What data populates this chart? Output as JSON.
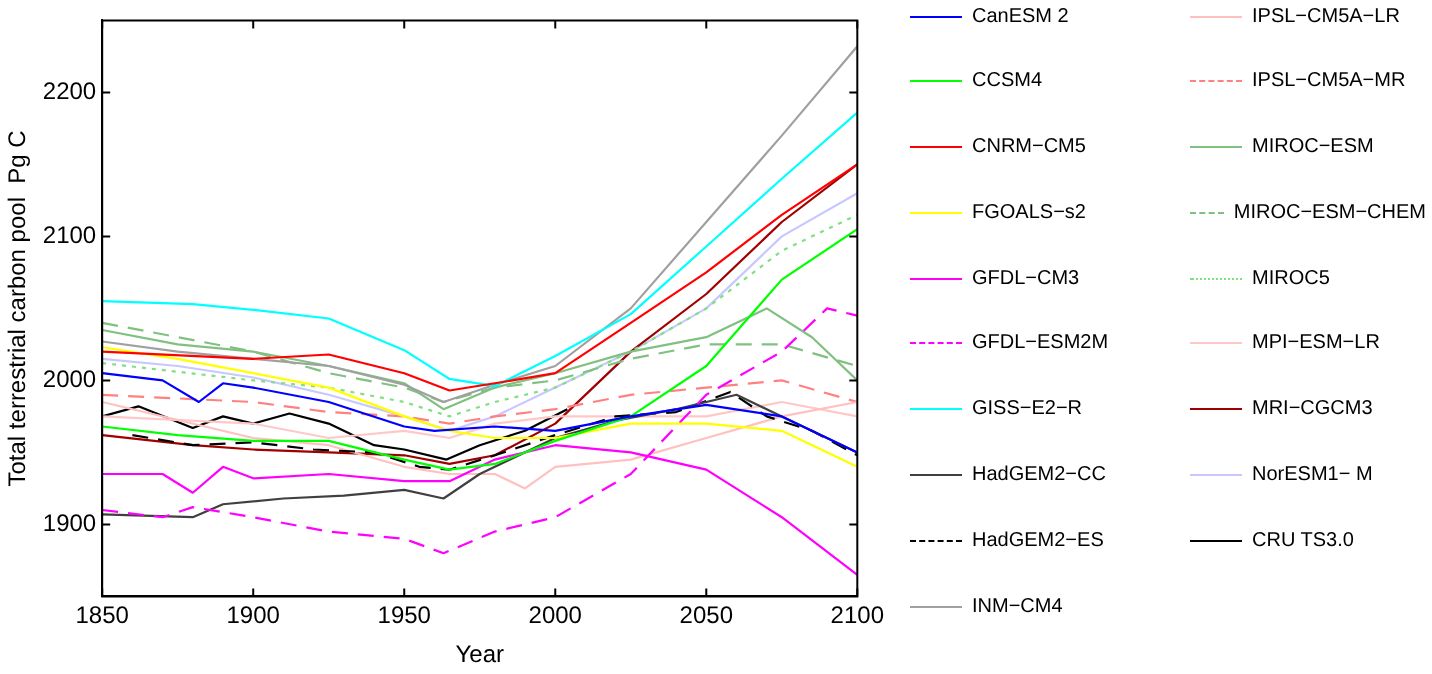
{
  "chart_data": {
    "type": "line",
    "xlabel": "Year",
    "ylabel": "Total terrestrial carbon pool  Pg C",
    "xlim": [
      1850,
      2100
    ],
    "ylim": [
      1850,
      2250
    ],
    "xticks": [
      1850,
      1900,
      1950,
      2000,
      2050,
      2100
    ],
    "yticks": [
      1900,
      2000,
      2100,
      2200
    ],
    "grid": false,
    "legend": "right",
    "marker": "none",
    "series": [
      {
        "name": "CanESM 2",
        "color": "#0000ff",
        "line_style": "solid",
        "x": [
          1850,
          1870,
          1882,
          1890,
          1900,
          1925,
          1950,
          1960,
          1980,
          2000,
          2025,
          2050,
          2075,
          2100
        ],
        "values": [
          2005,
          2000,
          1985,
          1998,
          1995,
          1985,
          1968,
          1965,
          1968,
          1965,
          1975,
          1983,
          1975,
          1950
        ]
      },
      {
        "name": "CCSM4",
        "color": "#00ff00",
        "line_style": "solid",
        "x": [
          1850,
          1875,
          1900,
          1925,
          1950,
          1965,
          1980,
          2000,
          2025,
          2050,
          2075,
          2100
        ],
        "values": [
          1968,
          1962,
          1958,
          1958,
          1945,
          1938,
          1942,
          1958,
          1975,
          2010,
          2070,
          2105
        ]
      },
      {
        "name": "CNRM−CM5",
        "color": "#ff0000",
        "line_style": "solid",
        "x": [
          1850,
          1900,
          1925,
          1950,
          1965,
          1980,
          2000,
          2025,
          2050,
          2075,
          2100
        ],
        "values": [
          2020,
          2015,
          2018,
          2005,
          1993,
          1998,
          2005,
          2040,
          2075,
          2115,
          2150
        ]
      },
      {
        "name": "FGOALS−s2",
        "color": "#ffff00",
        "line_style": "solid",
        "x": [
          1850,
          1875,
          1900,
          1925,
          1950,
          1965,
          1980,
          2000,
          2025,
          2050,
          2075,
          2100
        ],
        "values": [
          2023,
          2015,
          2005,
          1995,
          1975,
          1965,
          1960,
          1960,
          1970,
          1970,
          1965,
          1940
        ]
      },
      {
        "name": "GFDL−CM3",
        "color": "#ff00ff",
        "line_style": "solid",
        "x": [
          1850,
          1870,
          1880,
          1890,
          1900,
          1925,
          1950,
          1965,
          1980,
          2000,
          2025,
          2050,
          2075,
          2100
        ],
        "values": [
          1935,
          1935,
          1922,
          1940,
          1932,
          1935,
          1930,
          1930,
          1945,
          1955,
          1950,
          1938,
          1905,
          1865
        ]
      },
      {
        "name": "GFDL−ESM2M",
        "color": "#ff00ff",
        "line_style": "dashed",
        "x": [
          1850,
          1870,
          1880,
          1900,
          1925,
          1950,
          1963,
          1980,
          2000,
          2025,
          2050,
          2075,
          2090,
          2100
        ],
        "values": [
          1910,
          1905,
          1912,
          1905,
          1895,
          1890,
          1880,
          1895,
          1905,
          1935,
          1990,
          2020,
          2050,
          2045
        ]
      },
      {
        "name": "GISS−E2−R",
        "color": "#00ffff",
        "line_style": "solid",
        "x": [
          1850,
          1880,
          1900,
          1925,
          1950,
          1965,
          1980,
          2000,
          2025,
          2050,
          2075,
          2100
        ],
        "values": [
          2055,
          2053,
          2049,
          2043,
          2021,
          2001,
          1996,
          2017,
          2046,
          2093,
          2140,
          2186
        ]
      },
      {
        "name": "HadGEM2−CC",
        "color": "#404040",
        "line_style": "solid",
        "x": [
          1850,
          1880,
          1890,
          1910,
          1930,
          1950,
          1963,
          1975,
          2000,
          2020,
          2040,
          2060,
          2075,
          2090,
          2100
        ],
        "values": [
          1907,
          1905,
          1914,
          1918,
          1920,
          1924,
          1918,
          1935,
          1960,
          1972,
          1980,
          1990,
          1975,
          1960,
          1950
        ]
      },
      {
        "name": "HadGEM2−ES",
        "color": "#000000",
        "line_style": "dashed",
        "x": [
          1860,
          1880,
          1900,
          1920,
          1940,
          1955,
          1965,
          1980,
          2000,
          2020,
          2040,
          2058,
          2070,
          2085,
          2100
        ],
        "values": [
          1962,
          1955,
          1957,
          1952,
          1950,
          1940,
          1938,
          1948,
          1962,
          1975,
          1978,
          1992,
          1975,
          1965,
          1948
        ]
      },
      {
        "name": "INM−CM4",
        "color": "#a0a0a0",
        "line_style": "solid",
        "x": [
          1850,
          1875,
          1900,
          1925,
          1950,
          1963,
          1980,
          2000,
          2025,
          2050,
          2075,
          2100
        ],
        "values": [
          2027,
          2020,
          2015,
          2010,
          1997,
          1985,
          1997,
          2010,
          2050,
          2110,
          2170,
          2232
        ]
      },
      {
        "name": "IPSL−CM5A−LR",
        "color": "#ffc0c0",
        "line_style": "solid",
        "x": [
          1850,
          1900,
          1925,
          1950,
          1965,
          1980,
          1990,
          2000,
          2025,
          2050,
          2075,
          2100
        ],
        "values": [
          1985,
          1960,
          1955,
          1940,
          1935,
          1935,
          1925,
          1940,
          1945,
          1960,
          1975,
          1985
        ]
      },
      {
        "name": "IPSL−CM5A−MR",
        "color": "#ff8080",
        "line_style": "dashed",
        "x": [
          1850,
          1900,
          1925,
          1950,
          1965,
          1980,
          2000,
          2025,
          2050,
          2075,
          2100
        ],
        "values": [
          1990,
          1985,
          1978,
          1975,
          1970,
          1975,
          1980,
          1990,
          1995,
          2000,
          1985
        ]
      },
      {
        "name": "MIROC−ESM",
        "color": "#80c080",
        "line_style": "solid",
        "x": [
          1850,
          1875,
          1900,
          1925,
          1950,
          1963,
          1980,
          2000,
          2025,
          2050,
          2070,
          2085,
          2100
        ],
        "values": [
          2035,
          2025,
          2020,
          2010,
          1998,
          1980,
          1995,
          2005,
          2020,
          2030,
          2050,
          2030,
          2000
        ]
      },
      {
        "name": "MIROC−ESM−CHEM",
        "color": "#80c080",
        "line_style": "dashed",
        "x": [
          1850,
          1875,
          1900,
          1925,
          1950,
          1963,
          1980,
          2000,
          2025,
          2050,
          2075,
          2100
        ],
        "values": [
          2040,
          2030,
          2020,
          2005,
          1995,
          1985,
          1995,
          2000,
          2015,
          2025,
          2025,
          2010
        ]
      },
      {
        "name": "MIROC5",
        "color": "#80e080",
        "line_style": "dotted",
        "x": [
          1850,
          1900,
          1925,
          1950,
          1965,
          1980,
          2000,
          2025,
          2050,
          2075,
          2100
        ],
        "values": [
          2012,
          2000,
          1995,
          1985,
          1975,
          1985,
          1995,
          2020,
          2050,
          2090,
          2115
        ]
      },
      {
        "name": "MPI−ESM−LR",
        "color": "#ffc8c8",
        "line_style": "solid",
        "x": [
          1850,
          1900,
          1925,
          1950,
          1965,
          1980,
          2000,
          2025,
          2050,
          2075,
          2100
        ],
        "values": [
          1975,
          1970,
          1960,
          1965,
          1960,
          1970,
          1975,
          1975,
          1975,
          1985,
          1975
        ]
      },
      {
        "name": "MRI−CGCM3",
        "color": "#a00000",
        "line_style": "solid",
        "x": [
          1850,
          1880,
          1900,
          1925,
          1950,
          1965,
          1980,
          2000,
          2025,
          2050,
          2075,
          2100
        ],
        "values": [
          1962,
          1955,
          1952,
          1950,
          1948,
          1942,
          1948,
          1970,
          2020,
          2060,
          2110,
          2150
        ]
      },
      {
        "name": "NorESM1− M",
        "color": "#c8c8ff",
        "line_style": "solid",
        "x": [
          1850,
          1875,
          1900,
          1925,
          1950,
          1965,
          1980,
          2000,
          2025,
          2050,
          2075,
          2100
        ],
        "values": [
          2015,
          2010,
          2002,
          1990,
          1975,
          1965,
          1975,
          1995,
          2020,
          2050,
          2100,
          2130
        ]
      },
      {
        "name": "CRU TS3.0",
        "color": "#000000",
        "line_style": "solid",
        "x": [
          1850,
          1862,
          1880,
          1890,
          1900,
          1912,
          1925,
          1940,
          1950,
          1964,
          1975,
          1990,
          2004
        ],
        "values": [
          1975,
          1982,
          1967,
          1975,
          1970,
          1977,
          1970,
          1955,
          1952,
          1945,
          1955,
          1965,
          1980
        ]
      }
    ]
  }
}
